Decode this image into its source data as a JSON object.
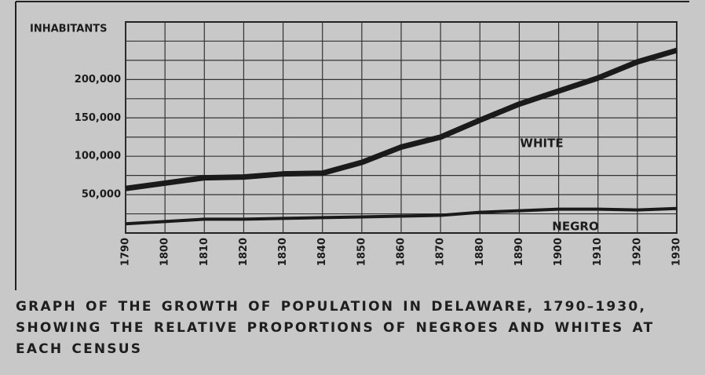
{
  "chart_data": {
    "type": "line",
    "y_label": "INHABITANTS",
    "x": [
      1790,
      1800,
      1810,
      1820,
      1830,
      1840,
      1850,
      1860,
      1870,
      1880,
      1890,
      1900,
      1910,
      1920,
      1930
    ],
    "xlim": [
      1790,
      1930
    ],
    "series": [
      {
        "name": "WHITE",
        "color": "#1a1a1a",
        "values": [
          58000,
          65000,
          72000,
          73000,
          77000,
          78000,
          92000,
          112000,
          125000,
          147000,
          168000,
          185000,
          202000,
          223000,
          238000
        ]
      },
      {
        "name": "NEGRO",
        "color": "#1a1a1a",
        "values": [
          12000,
          15000,
          18000,
          18000,
          19000,
          20000,
          21000,
          22000,
          23000,
          27000,
          29000,
          31000,
          31000,
          30000,
          32000
        ]
      }
    ],
    "ylim": [
      0,
      275000
    ],
    "yticks": [
      {
        "value": 50000,
        "label": "50,000"
      },
      {
        "value": 100000,
        "label": "100,000"
      },
      {
        "value": 150000,
        "label": "150,000"
      },
      {
        "value": 200000,
        "label": "200,000"
      }
    ],
    "minor_yticks": [
      25000,
      75000,
      125000,
      175000,
      225000,
      250000
    ],
    "grid": true,
    "caption": "GRAPH OF THE GROWTH OF POPULATION IN DELAWARE, 1790–1930, SHOWING THE RELATIVE PROPORTIONS OF NEGROES AND WHITES AT EACH CENSUS"
  }
}
